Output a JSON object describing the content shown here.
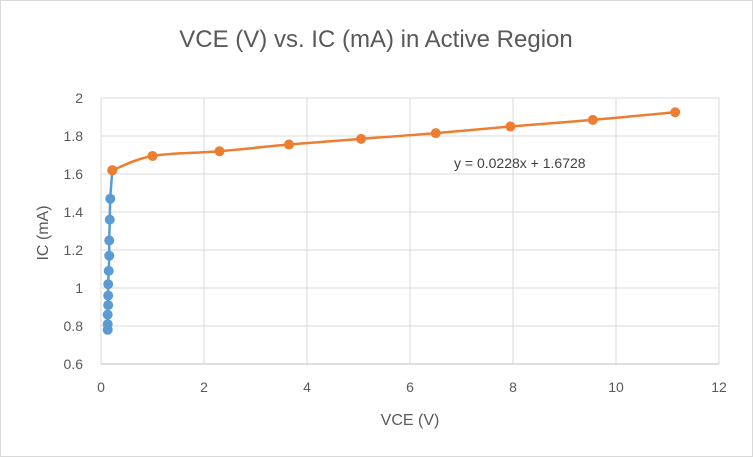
{
  "chart_data": {
    "type": "scatter",
    "title": "VCE (V) vs. IC (mA) in Active Region",
    "xlabel": "VCE (V)",
    "ylabel": "IC (mA)",
    "xlim": [
      0,
      12
    ],
    "ylim": [
      0.6,
      2
    ],
    "x_ticks": [
      "0",
      "2",
      "4",
      "6",
      "8",
      "10",
      "12"
    ],
    "y_ticks": [
      "0.6",
      "0.8",
      "1",
      "1.2",
      "1.4",
      "1.6",
      "1.8",
      "2"
    ],
    "grid": true,
    "legend": "none",
    "series": [
      {
        "color": "#5b9bd5",
        "smooth": true,
        "points": [
          [
            0.13,
            0.78
          ],
          [
            0.13,
            0.81
          ],
          [
            0.13,
            0.86
          ],
          [
            0.14,
            0.91
          ],
          [
            0.14,
            0.96
          ],
          [
            0.14,
            1.02
          ],
          [
            0.15,
            1.09
          ],
          [
            0.16,
            1.17
          ],
          [
            0.16,
            1.25
          ],
          [
            0.17,
            1.36
          ],
          [
            0.18,
            1.47
          ],
          [
            0.22,
            1.62
          ]
        ]
      },
      {
        "color": "#ed7d31",
        "smooth": true,
        "points": [
          [
            0.22,
            1.62
          ],
          [
            1.0,
            1.695
          ],
          [
            2.3,
            1.72
          ],
          [
            3.65,
            1.755
          ],
          [
            5.05,
            1.785
          ],
          [
            6.5,
            1.815
          ],
          [
            7.95,
            1.85
          ],
          [
            9.55,
            1.885
          ],
          [
            11.15,
            1.925
          ]
        ]
      }
    ],
    "annotations": [
      {
        "text": "y = 0.0228x + 1.6728"
      }
    ]
  }
}
